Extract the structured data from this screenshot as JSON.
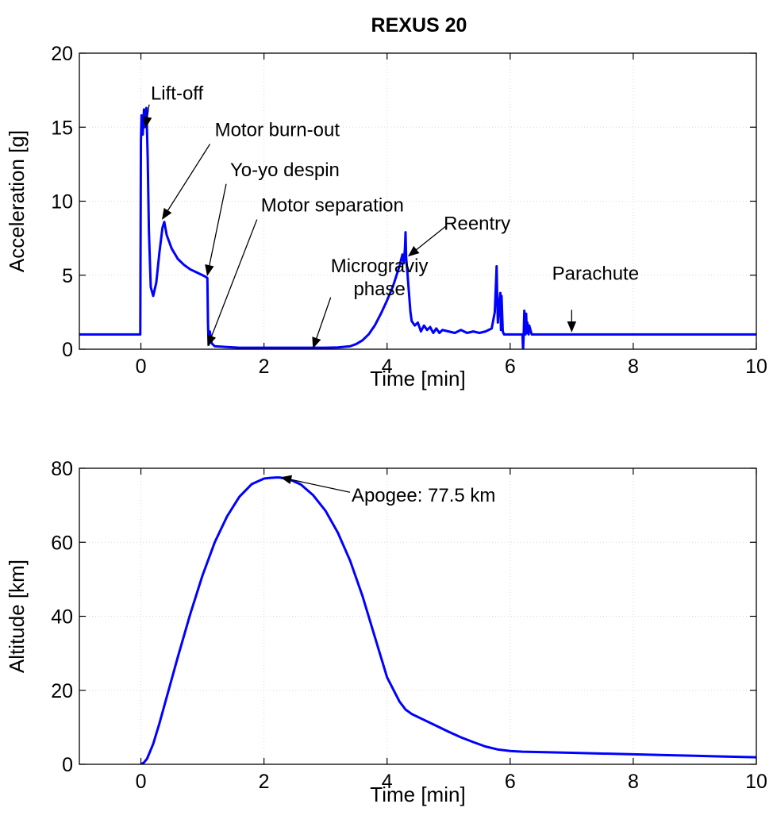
{
  "figure_title": "REXUS 20",
  "series_color": "#0000ff",
  "chart_data": [
    {
      "type": "line",
      "xlabel": "Time [min]",
      "ylabel": "Acceleration [g]",
      "xlim": [
        -1,
        10
      ],
      "ylim": [
        0,
        20
      ],
      "xticks": [
        0,
        2,
        4,
        6,
        8,
        10
      ],
      "yticks": [
        0,
        5,
        10,
        15,
        20
      ],
      "xtick_labels": [
        "0",
        "2",
        "4",
        "6",
        "8",
        "10"
      ],
      "ytick_labels": [
        "0",
        "5",
        "10",
        "15",
        "20"
      ],
      "grid": true,
      "series": [
        {
          "x": [
            -1,
            -0.01,
            0,
            0.01,
            0.03,
            0.05,
            0.07,
            0.09,
            0.11,
            0.13,
            0.16,
            0.2,
            0.25,
            0.3,
            0.35,
            0.38,
            0.42,
            0.5,
            0.6,
            0.7,
            0.8,
            0.9,
            1.0,
            1.05,
            1.08,
            1.09,
            1.1,
            1.12,
            1.15,
            1.2,
            1.4,
            1.6,
            1.8,
            2.0,
            2.2,
            2.4,
            2.6,
            2.8,
            3.0,
            3.2,
            3.4,
            3.5,
            3.6,
            3.7,
            3.8,
            3.9,
            4.0,
            4.1,
            4.2,
            4.25,
            4.27,
            4.29,
            4.3,
            4.31,
            4.33,
            4.35,
            4.38,
            4.4,
            4.45,
            4.5,
            4.55,
            4.6,
            4.65,
            4.7,
            4.75,
            4.8,
            4.85,
            4.9,
            5.0,
            5.1,
            5.2,
            5.3,
            5.4,
            5.5,
            5.6,
            5.7,
            5.75,
            5.77,
            5.78,
            5.79,
            5.8,
            5.82,
            5.84,
            5.85,
            5.86,
            5.88,
            5.9,
            6.0,
            6.1,
            6.2,
            6.21,
            6.22,
            6.23,
            6.24,
            6.25,
            6.26,
            6.27,
            6.28,
            6.29,
            6.3,
            6.31,
            6.35,
            6.5,
            7,
            8,
            9,
            10
          ],
          "y": [
            1.0,
            1.0,
            14.0,
            15.8,
            14.5,
            16.2,
            15.0,
            16.3,
            13.0,
            8.0,
            4.2,
            3.6,
            4.5,
            6.5,
            8.2,
            8.6,
            7.7,
            6.8,
            6.1,
            5.7,
            5.4,
            5.2,
            5.0,
            4.9,
            4.8,
            1.8,
            0.3,
            1.2,
            0.4,
            0.2,
            0.15,
            0.1,
            0.1,
            0.1,
            0.1,
            0.1,
            0.1,
            0.1,
            0.1,
            0.12,
            0.2,
            0.35,
            0.6,
            1.0,
            1.6,
            2.4,
            3.3,
            4.3,
            5.6,
            6.4,
            5.8,
            6.8,
            7.9,
            6.2,
            5.2,
            4.1,
            2.5,
            1.9,
            1.6,
            1.8,
            1.2,
            1.6,
            1.3,
            1.5,
            1.1,
            1.4,
            1.1,
            1.3,
            1.2,
            1.1,
            1.3,
            1.1,
            1.2,
            1.1,
            1.2,
            1.4,
            2.5,
            4.5,
            5.6,
            3.5,
            1.8,
            3.0,
            3.8,
            1.3,
            3.6,
            1.2,
            1.0,
            1.0,
            1.0,
            1.0,
            -0.1,
            1.0,
            2.6,
            1.4,
            1.0,
            2.4,
            1.1,
            1.8,
            1.2,
            1.0,
            1.6,
            1.0,
            1.0,
            1.0,
            1.0,
            1.0,
            1.0
          ]
        }
      ],
      "annotations": [
        {
          "text": "Lift-off",
          "x": 0.08,
          "y": 15.0,
          "text_x": 0.65,
          "text_y": 16.8
        },
        {
          "text": "Motor burn-out",
          "x": 0.35,
          "y": 8.8,
          "text_x": 1.2,
          "text_y": 14.4
        },
        {
          "text": "Yo-yo despin",
          "x": 1.08,
          "y": 5.0,
          "text_x": 1.45,
          "text_y": 11.7
        },
        {
          "text": "Motor separation",
          "x": 1.09,
          "y": 0.25,
          "text_x": 1.95,
          "text_y": 9.3
        },
        {
          "text": "Micrograviy\nphase",
          "x": 2.8,
          "y": 0.1,
          "text_x": 2.2,
          "text_y": 5.0
        },
        {
          "text": "Reentry",
          "x": 4.35,
          "y": 6.3,
          "text_x": 5.05,
          "text_y": 8.5
        },
        {
          "text": "Parachute",
          "x": 7.0,
          "y": 1.2,
          "text_x": 7.0,
          "text_y": 4.7
        }
      ]
    },
    {
      "type": "line",
      "xlabel": "Time [min]",
      "ylabel": "Altitude [km]",
      "xlim": [
        -1,
        10
      ],
      "ylim": [
        0,
        80
      ],
      "xticks": [
        0,
        2,
        4,
        6,
        8,
        10
      ],
      "yticks": [
        0,
        20,
        40,
        60,
        80
      ],
      "xtick_labels": [
        "0",
        "2",
        "4",
        "6",
        "8",
        "10"
      ],
      "ytick_labels": [
        "0",
        "20",
        "40",
        "60",
        "80"
      ],
      "grid": true,
      "series": [
        {
          "x": [
            0,
            0.05,
            0.1,
            0.2,
            0.3,
            0.4,
            0.5,
            0.6,
            0.8,
            1.0,
            1.2,
            1.4,
            1.6,
            1.8,
            2.0,
            2.1,
            2.2,
            2.25,
            2.4,
            2.6,
            2.8,
            3.0,
            3.2,
            3.4,
            3.6,
            3.8,
            4.0,
            4.2,
            4.3,
            4.4,
            4.6,
            4.8,
            5.0,
            5.2,
            5.4,
            5.6,
            5.8,
            6.0,
            6.2,
            6.5,
            7.0,
            7.5,
            8.0,
            8.5,
            9.0,
            9.5,
            10.0
          ],
          "y": [
            0.0,
            0.5,
            1.5,
            5.5,
            11.0,
            17.0,
            23.0,
            29.0,
            40.5,
            51.0,
            60.0,
            67.0,
            72.3,
            75.7,
            77.2,
            77.4,
            77.5,
            77.5,
            77.1,
            75.6,
            72.7,
            68.5,
            62.6,
            55.0,
            45.5,
            34.5,
            23.5,
            17.0,
            14.8,
            13.6,
            12.0,
            10.4,
            8.8,
            7.3,
            6.0,
            4.8,
            4.0,
            3.6,
            3.4,
            3.3,
            3.1,
            2.9,
            2.7,
            2.5,
            2.3,
            2.1,
            1.9
          ]
        }
      ],
      "annotations": [
        {
          "text": "Apogee: 77.5 km",
          "x": 2.28,
          "y": 77.5,
          "text_x": 3.5,
          "text_y": 71.8
        }
      ]
    }
  ]
}
